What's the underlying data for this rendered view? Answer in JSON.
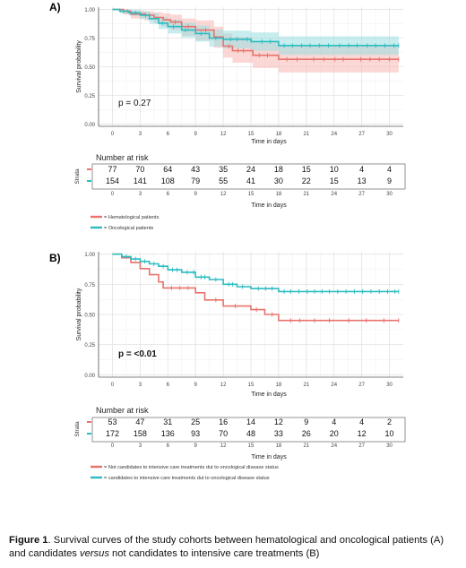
{
  "figure": {
    "caption_label": "Figure 1",
    "caption_part1": ". Survival curves of the study cohorts between hematological and oncological patients (A) and candidates ",
    "caption_italic": "versus",
    "caption_part2": " not candidates to intensive care treatments (B)"
  },
  "chart_data": [
    {
      "type": "line",
      "panel": "A)",
      "xlabel": "Time in days",
      "ylabel": "Survival probability",
      "xlim": [
        -1.5,
        31.5
      ],
      "ylim": [
        -0.02,
        1.02
      ],
      "xticks": [
        "0",
        "3",
        "6",
        "9",
        "12",
        "15",
        "18",
        "21",
        "24",
        "27",
        "30"
      ],
      "yticks": [
        "0.00",
        "0.25",
        "0.50",
        "0.75",
        "1.00"
      ],
      "grid": true,
      "pvalue": "p = 0.27",
      "series": [
        {
          "color": "#e8736c",
          "points": [
            [
              0,
              1.0
            ],
            [
              1.2,
              0.985
            ],
            [
              2.0,
              0.96
            ],
            [
              3.5,
              0.95
            ],
            [
              4.5,
              0.93
            ],
            [
              5.5,
              0.91
            ],
            [
              6.3,
              0.89
            ],
            [
              7.5,
              0.85
            ],
            [
              9.0,
              0.82
            ],
            [
              11.0,
              0.76
            ],
            [
              12.0,
              0.68
            ],
            [
              13.0,
              0.64
            ],
            [
              15.2,
              0.6
            ],
            [
              18.0,
              0.565
            ],
            [
              31.0,
              0.565
            ]
          ],
          "upper": [
            [
              0,
              1.0
            ],
            [
              1.2,
              1.0
            ],
            [
              2.0,
              0.99
            ],
            [
              3.5,
              0.985
            ],
            [
              4.5,
              0.975
            ],
            [
              5.5,
              0.965
            ],
            [
              6.3,
              0.955
            ],
            [
              7.5,
              0.92
            ],
            [
              9.0,
              0.905
            ],
            [
              11.0,
              0.85
            ],
            [
              12.0,
              0.79
            ],
            [
              13.0,
              0.76
            ],
            [
              15.2,
              0.725
            ],
            [
              18.0,
              0.69
            ],
            [
              31.0,
              0.69
            ]
          ],
          "lower": [
            [
              0,
              1.0
            ],
            [
              1.2,
              0.955
            ],
            [
              2.0,
              0.92
            ],
            [
              3.5,
              0.905
            ],
            [
              4.5,
              0.875
            ],
            [
              5.5,
              0.85
            ],
            [
              6.3,
              0.82
            ],
            [
              7.5,
              0.77
            ],
            [
              9.0,
              0.73
            ],
            [
              11.0,
              0.665
            ],
            [
              12.0,
              0.58
            ],
            [
              13.0,
              0.535
            ],
            [
              15.2,
              0.49
            ],
            [
              18.0,
              0.45
            ],
            [
              31.0,
              0.45
            ]
          ],
          "censors": [
            1.6,
            4.0,
            6.8,
            8.2,
            10.1,
            12.6,
            13.6,
            14.2,
            15.9,
            16.8,
            18.9,
            20.0,
            21.8,
            22.9,
            24.1,
            25.0,
            26.9,
            27.9,
            28.9,
            30.0,
            31.0
          ]
        },
        {
          "color": "#2bbcc0",
          "points": [
            [
              0,
              1.0
            ],
            [
              0.8,
              0.985
            ],
            [
              1.8,
              0.97
            ],
            [
              3.0,
              0.95
            ],
            [
              4.0,
              0.92
            ],
            [
              5.0,
              0.88
            ],
            [
              6.0,
              0.85
            ],
            [
              7.5,
              0.82
            ],
            [
              9.0,
              0.79
            ],
            [
              10.5,
              0.75
            ],
            [
              12.0,
              0.74
            ],
            [
              15.0,
              0.72
            ],
            [
              18.0,
              0.685
            ],
            [
              31.0,
              0.685
            ]
          ],
          "upper": [
            [
              0,
              1.0
            ],
            [
              0.8,
              1.0
            ],
            [
              1.8,
              0.995
            ],
            [
              3.0,
              0.985
            ],
            [
              4.0,
              0.965
            ],
            [
              5.0,
              0.935
            ],
            [
              6.0,
              0.91
            ],
            [
              7.5,
              0.885
            ],
            [
              9.0,
              0.86
            ],
            [
              10.5,
              0.825
            ],
            [
              12.0,
              0.815
            ],
            [
              15.0,
              0.8
            ],
            [
              18.0,
              0.765
            ],
            [
              31.0,
              0.765
            ]
          ],
          "lower": [
            [
              0,
              1.0
            ],
            [
              0.8,
              0.965
            ],
            [
              1.8,
              0.945
            ],
            [
              3.0,
              0.915
            ],
            [
              4.0,
              0.875
            ],
            [
              5.0,
              0.83
            ],
            [
              6.0,
              0.79
            ],
            [
              7.5,
              0.755
            ],
            [
              9.0,
              0.72
            ],
            [
              10.5,
              0.675
            ],
            [
              12.0,
              0.66
            ],
            [
              15.0,
              0.64
            ],
            [
              18.0,
              0.605
            ],
            [
              31.0,
              0.605
            ]
          ],
          "censors": [
            1.2,
            2.5,
            3.6,
            5.4,
            6.6,
            7.9,
            9.6,
            11.2,
            12.8,
            13.5,
            14.6,
            16.2,
            17.1,
            18.6,
            19.5,
            20.5,
            21.4,
            22.4,
            23.4,
            24.6,
            25.6,
            26.5,
            27.6,
            28.5,
            29.5,
            30.5,
            31.0
          ]
        }
      ],
      "risk_table": {
        "title": "Number at risk",
        "strata_label": "Strata",
        "rows": [
          [
            "77",
            "70",
            "64",
            "43",
            "35",
            "24",
            "18",
            "15",
            "10",
            "4",
            "4"
          ],
          [
            "154",
            "141",
            "108",
            "79",
            "55",
            "41",
            "30",
            "22",
            "15",
            "13",
            "9"
          ]
        ],
        "xlabel": "Time in days"
      },
      "legend": [
        "= Hematological patients",
        "= Oncological patients"
      ]
    },
    {
      "type": "line",
      "panel": "B)",
      "xlabel": "Time in days",
      "ylabel": "Survival probability",
      "xlim": [
        -1.5,
        31.5
      ],
      "ylim": [
        -0.02,
        1.02
      ],
      "xticks": [
        "0",
        "3",
        "6",
        "9",
        "12",
        "15",
        "18",
        "21",
        "24",
        "27",
        "30"
      ],
      "yticks": [
        "0.00",
        "0.25",
        "0.50",
        "0.75",
        "1.00"
      ],
      "grid": true,
      "pvalue": "p = <0.01",
      "series": [
        {
          "color": "#e8736c",
          "points": [
            [
              0,
              1.0
            ],
            [
              1.0,
              0.97
            ],
            [
              2.0,
              0.93
            ],
            [
              3.0,
              0.88
            ],
            [
              4.0,
              0.83
            ],
            [
              5.0,
              0.77
            ],
            [
              5.5,
              0.72
            ],
            [
              9.0,
              0.68
            ],
            [
              10.0,
              0.62
            ],
            [
              12.0,
              0.57
            ],
            [
              15.0,
              0.54
            ],
            [
              16.5,
              0.5
            ],
            [
              18.0,
              0.45
            ],
            [
              31.0,
              0.45
            ]
          ],
          "censors": [
            6.4,
            7.3,
            8.2,
            11.2,
            13.3,
            15.6,
            17.3,
            19.3,
            20.3,
            21.9,
            23.5,
            25.6,
            27.5,
            29.4,
            31.0
          ]
        },
        {
          "color": "#2bbcc0",
          "points": [
            [
              0,
              1.0
            ],
            [
              1.0,
              0.98
            ],
            [
              2.0,
              0.96
            ],
            [
              3.0,
              0.94
            ],
            [
              4.0,
              0.92
            ],
            [
              5.0,
              0.9
            ],
            [
              6.0,
              0.87
            ],
            [
              7.5,
              0.85
            ],
            [
              9.0,
              0.81
            ],
            [
              10.5,
              0.79
            ],
            [
              12.0,
              0.75
            ],
            [
              13.5,
              0.73
            ],
            [
              15.0,
              0.715
            ],
            [
              18.0,
              0.69
            ],
            [
              31.0,
              0.69
            ]
          ],
          "censors": [
            1.5,
            2.5,
            3.5,
            4.5,
            5.5,
            6.5,
            7.0,
            8.1,
            8.8,
            9.6,
            10.0,
            11.2,
            12.6,
            13.0,
            14.1,
            15.8,
            16.6,
            17.3,
            18.6,
            19.3,
            20.2,
            21.1,
            21.9,
            22.7,
            23.5,
            24.4,
            25.3,
            26.2,
            27.1,
            28.0,
            28.9,
            29.8,
            30.6,
            31.0
          ]
        }
      ],
      "risk_table": {
        "title": "Number at risk",
        "strata_label": "Strata",
        "rows": [
          [
            "53",
            "47",
            "31",
            "25",
            "16",
            "14",
            "12",
            "9",
            "4",
            "4",
            "2"
          ],
          [
            "172",
            "158",
            "136",
            "93",
            "70",
            "48",
            "33",
            "26",
            "20",
            "12",
            "10"
          ]
        ],
        "xlabel": "Time in days"
      },
      "legend": [
        "= Not candidates to intensive care treatments dut to oncological disease status",
        "= candidates to intensive care treatments dut to oncological disease status"
      ]
    }
  ]
}
